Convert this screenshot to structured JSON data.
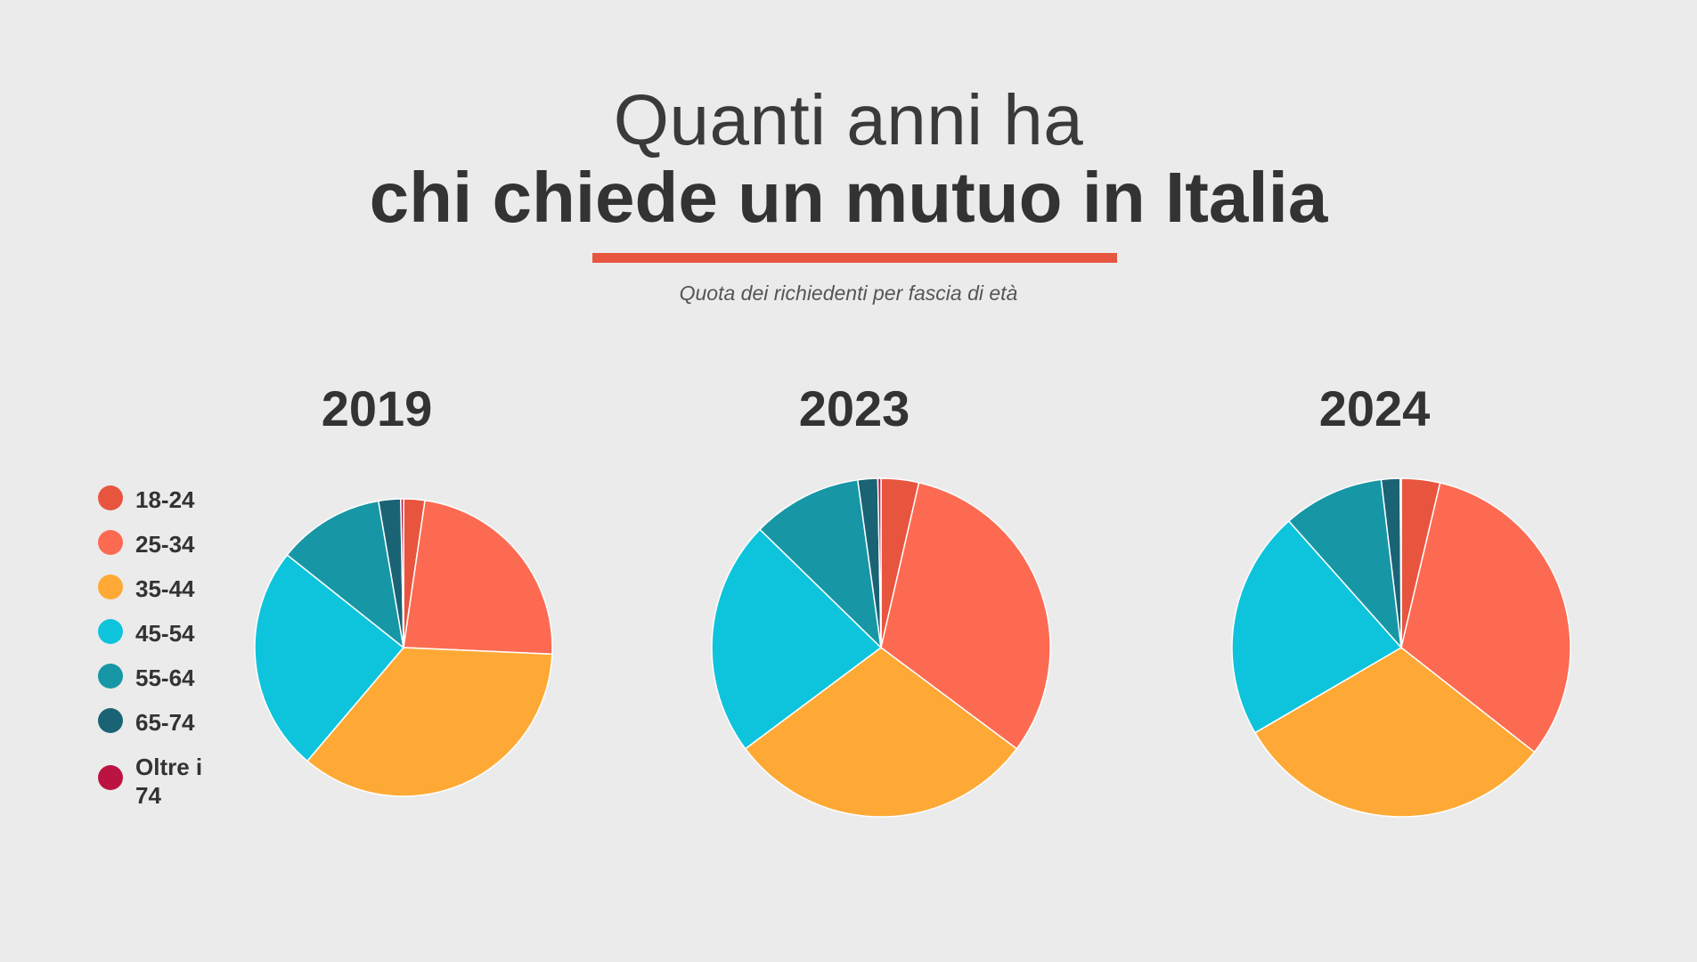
{
  "title": {
    "line1": "Quanti anni ha",
    "line2": "chi chiede un mutuo in Italia"
  },
  "subtitle": "Quota dei richiedenti per fascia di età",
  "legend": [
    {
      "label": "18-24",
      "color": "#e8553e"
    },
    {
      "label": "25-34",
      "color": "#fd6a52"
    },
    {
      "label": "35-44",
      "color": "#fea935"
    },
    {
      "label": "45-54",
      "color": "#0ec4dc"
    },
    {
      "label": "55-64",
      "color": "#1797a6"
    },
    {
      "label": "65-74",
      "color": "#1a6375"
    },
    {
      "label": "Oltre i 74",
      "color": "#bc1442"
    }
  ],
  "chart_data": [
    {
      "type": "pie",
      "title": "2019",
      "categories": [
        "18-24",
        "25-34",
        "35-44",
        "45-54",
        "55-64",
        "65-74",
        "Oltre i 74"
      ],
      "values": [
        2.3,
        23.4,
        35.5,
        24.5,
        11.6,
        2.4,
        0.3
      ]
    },
    {
      "type": "pie",
      "title": "2023",
      "categories": [
        "18-24",
        "25-34",
        "35-44",
        "45-54",
        "55-64",
        "65-74",
        "Oltre i 74"
      ],
      "values": [
        3.6,
        31.6,
        29.6,
        22.5,
        10.5,
        1.9,
        0.3
      ]
    },
    {
      "type": "pie",
      "title": "2024",
      "categories": [
        "18-24",
        "25-34",
        "35-44",
        "45-54",
        "55-64",
        "65-74",
        "Oltre i 74"
      ],
      "values": [
        3.7,
        32.0,
        31.1,
        21.9,
        9.7,
        1.8,
        0.1
      ]
    }
  ]
}
